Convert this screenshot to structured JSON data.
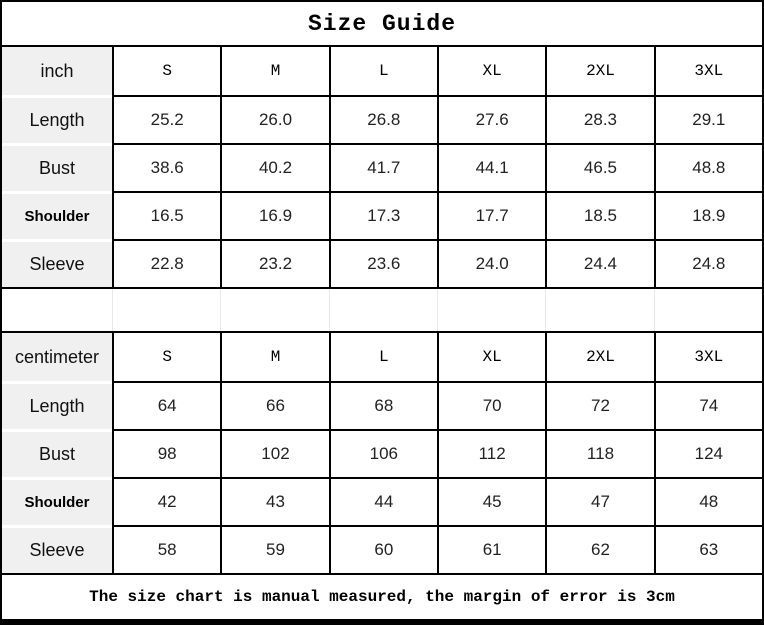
{
  "title": "Size Guide",
  "footer_note": "The size chart is manual measured, the margin of error is 3cm",
  "sizes": [
    "S",
    "M",
    "L",
    "XL",
    "2XL",
    "3XL"
  ],
  "tables": [
    {
      "unit": "inch",
      "rows": [
        {
          "label": "Length",
          "values": [
            "25.2",
            "26.0",
            "26.8",
            "27.6",
            "28.3",
            "29.1"
          ]
        },
        {
          "label": "Bust",
          "values": [
            "38.6",
            "40.2",
            "41.7",
            "44.1",
            "46.5",
            "48.8"
          ]
        },
        {
          "label": "Shoulder",
          "values": [
            "16.5",
            "16.9",
            "17.3",
            "17.7",
            "18.5",
            "18.9"
          ]
        },
        {
          "label": "Sleeve",
          "values": [
            "22.8",
            "23.2",
            "23.6",
            "24.0",
            "24.4",
            "24.8"
          ]
        }
      ]
    },
    {
      "unit": "centimeter",
      "rows": [
        {
          "label": "Length",
          "values": [
            "64",
            "66",
            "68",
            "70",
            "72",
            "74"
          ]
        },
        {
          "label": "Bust",
          "values": [
            "98",
            "102",
            "106",
            "112",
            "118",
            "124"
          ]
        },
        {
          "label": "Shoulder",
          "values": [
            "42",
            "43",
            "44",
            "45",
            "47",
            "48"
          ]
        },
        {
          "label": "Sleeve",
          "values": [
            "58",
            "59",
            "60",
            "61",
            "62",
            "63"
          ]
        }
      ]
    }
  ],
  "colors": {
    "border": "#000000",
    "label_cell_bg": "#f0f0f0",
    "spacer_line": "#e8e8e8",
    "text": "#1a1a1a"
  }
}
